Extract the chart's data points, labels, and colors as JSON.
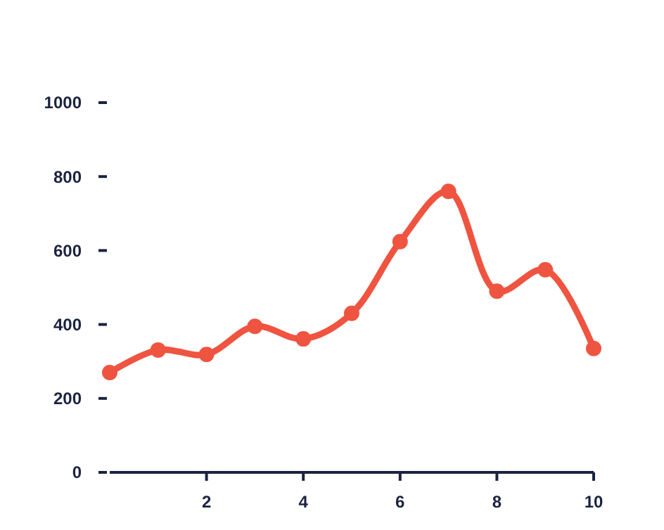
{
  "chart_data": {
    "type": "line",
    "x": [
      0,
      1,
      2,
      3,
      4,
      5,
      6,
      7,
      8,
      9,
      10
    ],
    "series": [
      {
        "color": "#ef5440",
        "values": [
          270,
          331,
          319,
          395,
          361,
          430,
          624,
          760,
          490,
          548,
          335
        ]
      }
    ],
    "xlim": [
      0,
      10
    ],
    "xticks": [
      2,
      4,
      6,
      8,
      10
    ],
    "ylim": [
      0,
      1000
    ],
    "yticks": [
      0,
      200,
      400,
      600,
      800,
      1000
    ],
    "marker": "circle",
    "line_style": "solid"
  }
}
